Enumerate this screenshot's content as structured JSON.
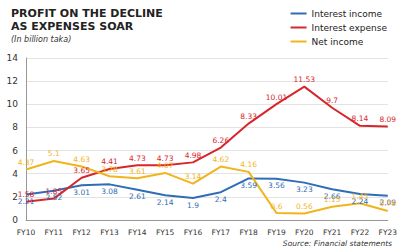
{
  "chart_data": {
    "type": "line",
    "title": "PROFIT ON THE DECLINE\nAS EXPENSES SOAR",
    "subtitle": "(In billion taka)",
    "source": "Source: Financial statements",
    "categories": [
      "FY10",
      "FY11",
      "FY12",
      "FY13",
      "FY14",
      "FY15",
      "FY16",
      "FY17",
      "FY18",
      "FY19",
      "FY20",
      "FY21",
      "FY22",
      "FY23"
    ],
    "series": [
      {
        "name": "Interest income",
        "color": "#2f6db5",
        "values": [
          2.21,
          2.52,
          3.01,
          3.08,
          2.61,
          2.14,
          1.9,
          2.4,
          3.59,
          3.56,
          3.23,
          2.66,
          2.24,
          2.09
        ]
      },
      {
        "name": "Interest expense",
        "color": "#d7262b",
        "values": [
          1.58,
          1.85,
          3.65,
          4.41,
          4.73,
          4.73,
          4.98,
          6.26,
          8.33,
          10.01,
          11.53,
          9.7,
          8.14,
          8.09
        ]
      },
      {
        "name": "Net income",
        "color": "#f2b41c",
        "values": [
          4.37,
          5.1,
          4.63,
          3.78,
          3.61,
          4.07,
          3.14,
          4.62,
          4.16,
          0.6,
          0.56,
          1.15,
          1.45,
          0.78
        ]
      }
    ],
    "ylim": [
      0,
      14
    ],
    "yticks": [
      0,
      2,
      4,
      6,
      8,
      10,
      12,
      14
    ],
    "grid": true,
    "legend": "top-right",
    "data_labels": true
  }
}
